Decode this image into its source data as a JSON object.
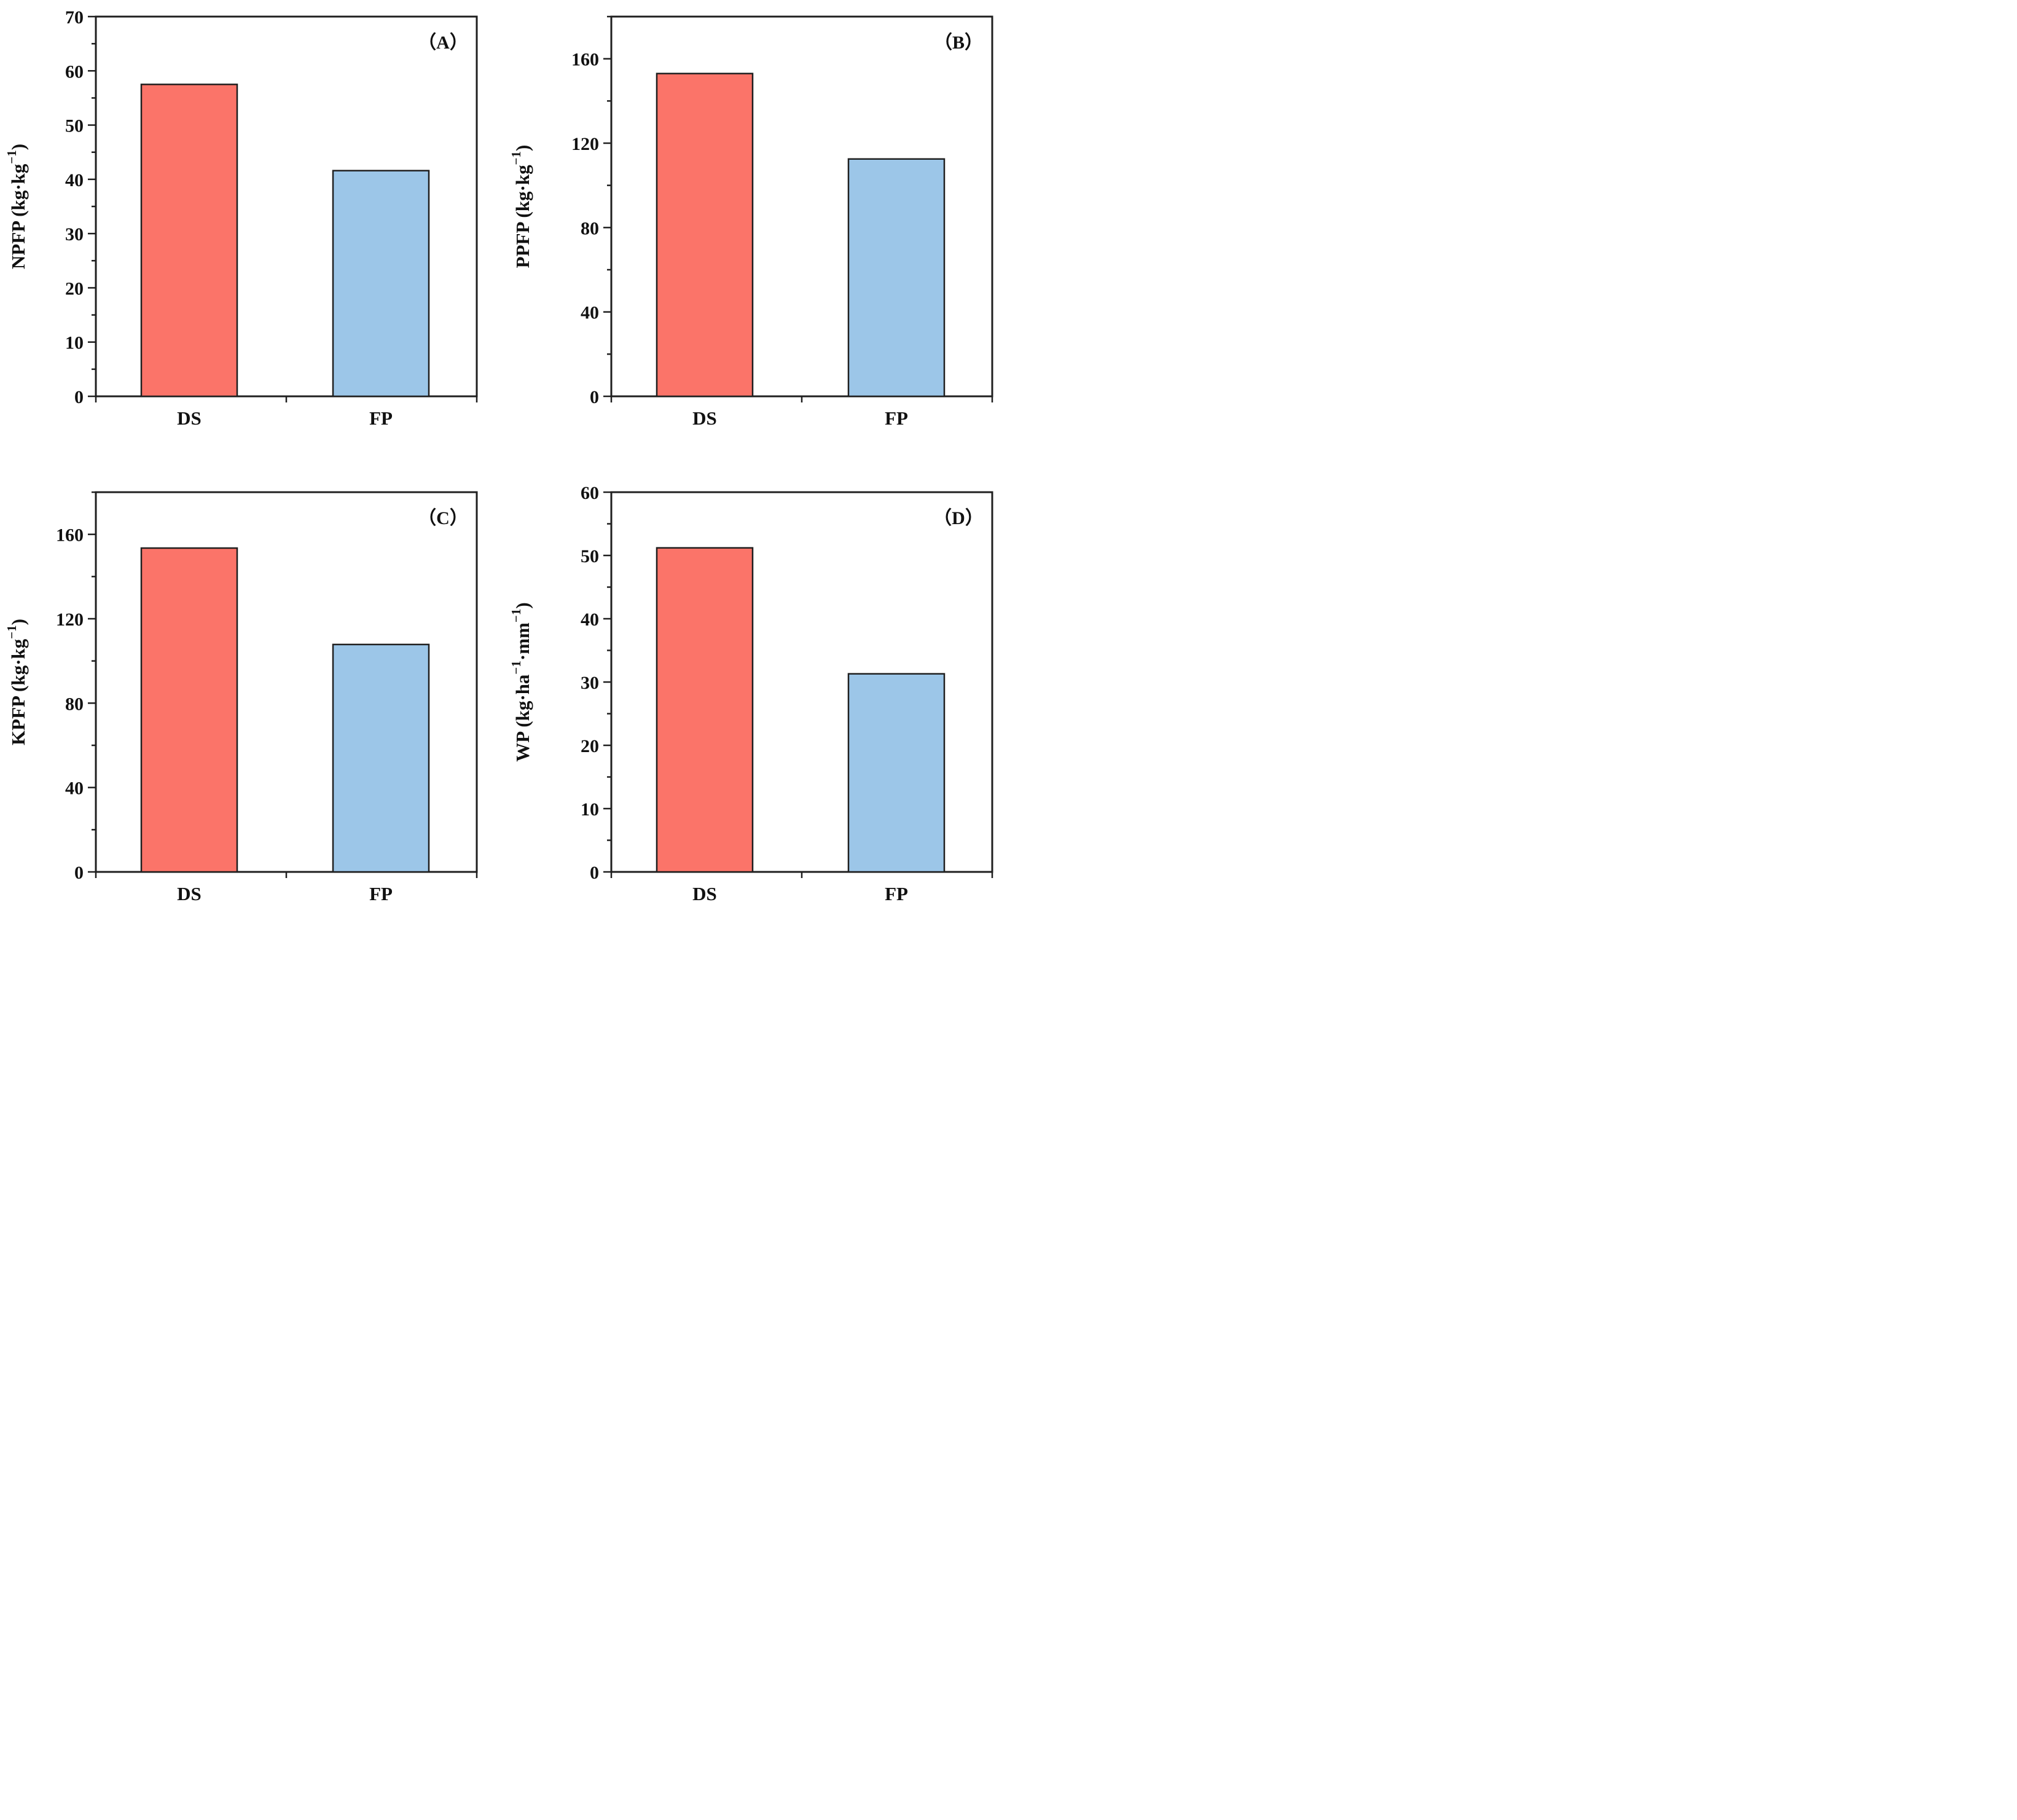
{
  "figure": {
    "background": "#ffffff",
    "axis_color": "#1f1f1f",
    "bar_edge_color": "#1f1f1f",
    "bar_colors": {
      "DS": "#fb7469",
      "FP": "#9cc6e8"
    }
  },
  "chart_data": [
    {
      "type": "bar",
      "id": "A",
      "panel_label": "（A）",
      "title": "",
      "xlabel": "",
      "ylabel": "NPFP (kg·kg−1)",
      "ylabel_segments": [
        {
          "t": "NPFP (kg·kg"
        },
        {
          "t": "−1",
          "sup": true
        },
        {
          "t": ")"
        }
      ],
      "categories": [
        "DS",
        "FP"
      ],
      "values": [
        57.5,
        41.6
      ],
      "ylim": [
        0,
        70
      ],
      "ytick_major": 10,
      "ytick_minor": 5,
      "grid": false,
      "legend": "none"
    },
    {
      "type": "bar",
      "id": "B",
      "panel_label": "（B）",
      "title": "",
      "xlabel": "",
      "ylabel": "PPFP (kg·kg−1)",
      "ylabel_segments": [
        {
          "t": "PPFP (kg·kg"
        },
        {
          "t": "−1",
          "sup": true
        },
        {
          "t": ")"
        }
      ],
      "categories": [
        "DS",
        "FP"
      ],
      "values": [
        153,
        112.5
      ],
      "ylim": [
        0,
        180
      ],
      "ytick_major": 40,
      "ytick_minor": 20,
      "grid": false,
      "legend": "none"
    },
    {
      "type": "bar",
      "id": "C",
      "panel_label": "（C）",
      "title": "",
      "xlabel": "",
      "ylabel": "KPFP (kg·kg−1)",
      "ylabel_segments": [
        {
          "t": "KPFP (kg·kg"
        },
        {
          "t": "−1",
          "sup": true
        },
        {
          "t": ")"
        }
      ],
      "categories": [
        "DS",
        "FP"
      ],
      "values": [
        153.5,
        107.8
      ],
      "ylim": [
        0,
        180
      ],
      "ytick_major": 40,
      "ytick_minor": 20,
      "grid": false,
      "legend": "none"
    },
    {
      "type": "bar",
      "id": "D",
      "panel_label": "（D）",
      "title": "",
      "xlabel": "",
      "ylabel": "WP (kg·ha−1·mm−1)",
      "ylabel_segments": [
        {
          "t": "WP (kg·ha"
        },
        {
          "t": "−1",
          "sup": true
        },
        {
          "t": "·mm"
        },
        {
          "t": "−1",
          "sup": true
        },
        {
          "t": ")"
        }
      ],
      "categories": [
        "DS",
        "FP"
      ],
      "values": [
        51.2,
        31.3
      ],
      "ylim": [
        0,
        60
      ],
      "ytick_major": 10,
      "ytick_minor": 5,
      "grid": false,
      "legend": "none"
    }
  ]
}
